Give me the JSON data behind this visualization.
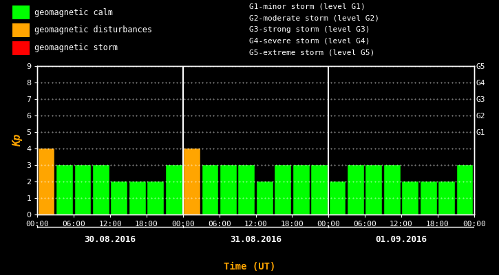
{
  "background_color": "#000000",
  "bar_width": 0.9,
  "days": [
    "30.08.2016",
    "31.08.2016",
    "01.09.2016"
  ],
  "kp_values": [
    [
      4,
      3,
      3,
      3,
      2,
      2,
      2,
      3
    ],
    [
      4,
      3,
      3,
      3,
      2,
      3,
      3,
      3
    ],
    [
      2,
      3,
      3,
      3,
      2,
      2,
      2,
      3
    ]
  ],
  "color_calm": "#00ff00",
  "color_disturbance": "#ffa500",
  "color_storm": "#ff0000",
  "disturbance_threshold": 4,
  "storm_threshold": 5,
  "ylim": [
    0,
    9
  ],
  "yticks": [
    0,
    1,
    2,
    3,
    4,
    5,
    6,
    7,
    8,
    9
  ],
  "ylabel": "Kp",
  "xlabel": "Time (UT)",
  "ylabel_color": "#ffa500",
  "xlabel_color": "#ffa500",
  "tick_color": "#ffffff",
  "axis_color": "#ffffff",
  "grid_color": "#ffffff",
  "right_labels": [
    "G5",
    "G4",
    "G3",
    "G2",
    "G1"
  ],
  "right_label_yticks": [
    9,
    8,
    7,
    6,
    5
  ],
  "right_label_color": "#ffffff",
  "legend_items": [
    {
      "label": "geomagnetic calm",
      "color": "#00ff00"
    },
    {
      "label": "geomagnetic disturbances",
      "color": "#ffa500"
    },
    {
      "label": "geomagnetic storm",
      "color": "#ff0000"
    }
  ],
  "storm_legend_text": [
    "G1-minor storm (level G1)",
    "G2-moderate storm (level G2)",
    "G3-strong storm (level G3)",
    "G4-severe storm (level G4)",
    "G5-extreme storm (level G5)"
  ],
  "font_family": "monospace",
  "font_size": 8,
  "dot_grid_y": [
    1,
    2,
    3,
    4,
    5,
    6,
    7,
    8,
    9
  ],
  "n_bars_per_day": 8,
  "hours_per_bar": 3
}
